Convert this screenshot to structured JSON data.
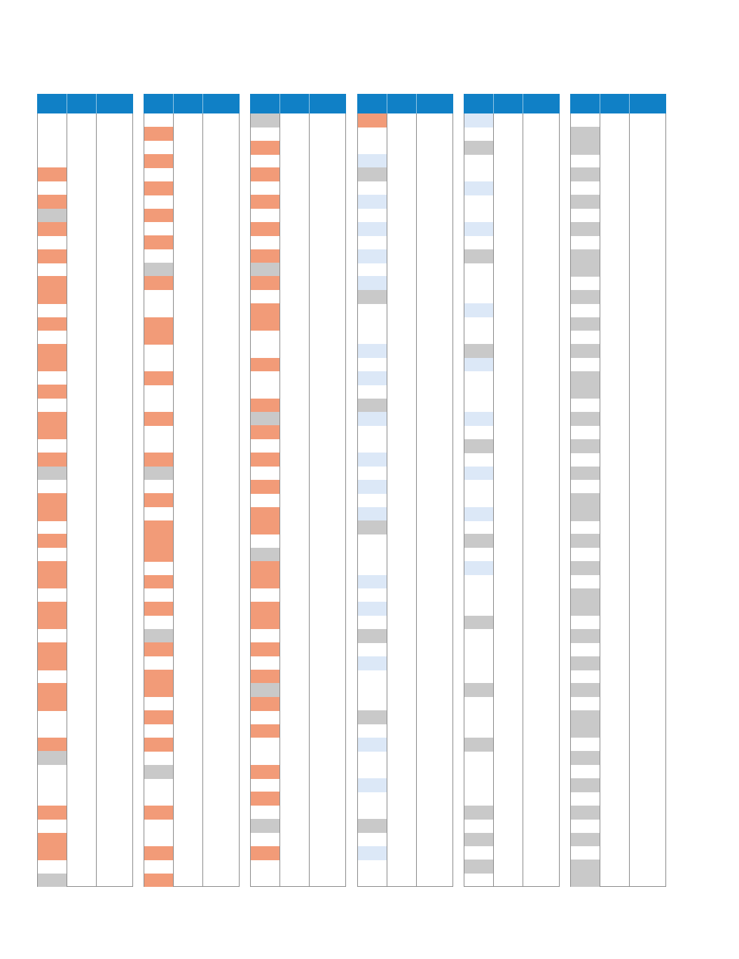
{
  "colors": {
    "header": "#1080c6",
    "c": "#f29b78",
    "g": "#c9c9c9",
    "b": "#dce8f7",
    "w": "#ffffff",
    "border": "#8a8a8a"
  },
  "tables": [
    {
      "id": "table-1",
      "row_states": [
        "w",
        "w",
        "w",
        "w",
        "c",
        "w",
        "c",
        "g",
        "c",
        "w",
        "c",
        "w",
        "c",
        "c",
        "w",
        "c",
        "w",
        "c",
        "c",
        "w",
        "c",
        "w",
        "c",
        "c",
        "w",
        "c",
        "g",
        "w",
        "c",
        "c",
        "w",
        "c",
        "w",
        "c",
        "c",
        "w",
        "c",
        "c",
        "w",
        "c",
        "c",
        "w",
        "c",
        "c",
        "w",
        "w",
        "c",
        "g",
        "w",
        "w",
        "w",
        "c",
        "w",
        "c",
        "c",
        "w",
        "g"
      ]
    },
    {
      "id": "table-2",
      "row_states": [
        "w",
        "c",
        "w",
        "c",
        "w",
        "c",
        "w",
        "c",
        "w",
        "c",
        "w",
        "g",
        "c",
        "w",
        "w",
        "c",
        "c",
        "w",
        "w",
        "c",
        "w",
        "w",
        "c",
        "w",
        "w",
        "c",
        "g",
        "w",
        "c",
        "w",
        "c",
        "c",
        "c",
        "w",
        "c",
        "w",
        "c",
        "w",
        "g",
        "c",
        "w",
        "c",
        "c",
        "w",
        "c",
        "w",
        "c",
        "w",
        "g",
        "w",
        "w",
        "c",
        "w",
        "w",
        "c",
        "w",
        "c"
      ]
    },
    {
      "id": "table-3",
      "row_states": [
        "g",
        "w",
        "c",
        "w",
        "c",
        "w",
        "c",
        "w",
        "c",
        "w",
        "c",
        "g",
        "c",
        "w",
        "c",
        "c",
        "w",
        "w",
        "c",
        "w",
        "w",
        "c",
        "g",
        "c",
        "w",
        "c",
        "w",
        "c",
        "w",
        "c",
        "c",
        "w",
        "g",
        "c",
        "c",
        "w",
        "c",
        "c",
        "w",
        "c",
        "w",
        "c",
        "g",
        "c",
        "w",
        "c",
        "w",
        "w",
        "c",
        "w",
        "c",
        "w",
        "g",
        "w",
        "c",
        "w",
        "w"
      ]
    },
    {
      "id": "table-4",
      "row_states": [
        "c",
        "w",
        "w",
        "b",
        "g",
        "w",
        "b",
        "w",
        "b",
        "w",
        "b",
        "w",
        "b",
        "g",
        "w",
        "w",
        "w",
        "b",
        "w",
        "b",
        "w",
        "g",
        "b",
        "w",
        "w",
        "b",
        "w",
        "b",
        "w",
        "b",
        "g",
        "w",
        "w",
        "w",
        "b",
        "w",
        "b",
        "w",
        "g",
        "w",
        "b",
        "w",
        "w",
        "w",
        "g",
        "w",
        "b",
        "w",
        "w",
        "b",
        "w",
        "w",
        "g",
        "w",
        "b",
        "w",
        "w"
      ]
    },
    {
      "id": "table-5",
      "row_states": [
        "b",
        "w",
        "g",
        "w",
        "w",
        "b",
        "w",
        "w",
        "b",
        "w",
        "g",
        "w",
        "w",
        "w",
        "b",
        "w",
        "w",
        "g",
        "b",
        "w",
        "w",
        "w",
        "b",
        "w",
        "g",
        "w",
        "b",
        "w",
        "w",
        "b",
        "w",
        "g",
        "w",
        "b",
        "w",
        "w",
        "w",
        "g",
        "w",
        "w",
        "w",
        "w",
        "g",
        "w",
        "w",
        "w",
        "g",
        "w",
        "w",
        "w",
        "w",
        "g",
        "w",
        "g",
        "w",
        "g",
        "w"
      ]
    },
    {
      "id": "table-6",
      "row_states": [
        "w",
        "g",
        "g",
        "w",
        "g",
        "w",
        "g",
        "w",
        "g",
        "w",
        "g",
        "g",
        "w",
        "g",
        "w",
        "g",
        "w",
        "g",
        "w",
        "g",
        "g",
        "w",
        "g",
        "w",
        "g",
        "w",
        "g",
        "w",
        "g",
        "g",
        "w",
        "g",
        "w",
        "g",
        "w",
        "g",
        "g",
        "w",
        "g",
        "w",
        "g",
        "w",
        "g",
        "w",
        "g",
        "g",
        "w",
        "g",
        "w",
        "g",
        "w",
        "g",
        "w",
        "g",
        "w",
        "g",
        "g"
      ]
    }
  ]
}
